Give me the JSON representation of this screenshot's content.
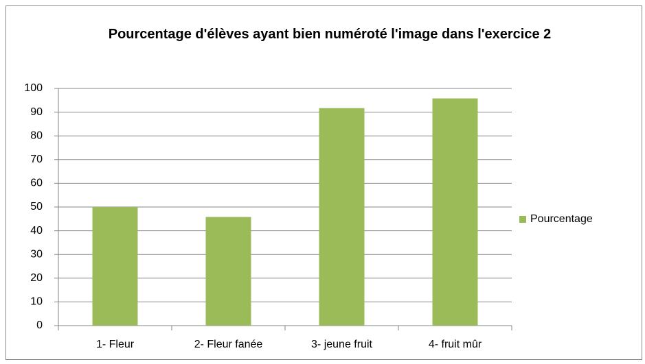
{
  "chart_data": {
    "type": "bar",
    "title": "Pourcentage d'élèves ayant bien numéroté l'image dans l'exercice 2",
    "categories": [
      "1- Fleur",
      "2- Fleur fanée",
      "3- jeune fruit",
      "4- fruit mûr"
    ],
    "series": [
      {
        "name": "Pourcentage",
        "color": "#9bbb59",
        "values": [
          50,
          45.8,
          91.7,
          95.8
        ]
      }
    ],
    "ylim": [
      0,
      100
    ],
    "yticks": [
      0,
      10,
      20,
      30,
      40,
      50,
      60,
      70,
      80,
      90,
      100
    ],
    "grid": true,
    "legend": "right"
  }
}
